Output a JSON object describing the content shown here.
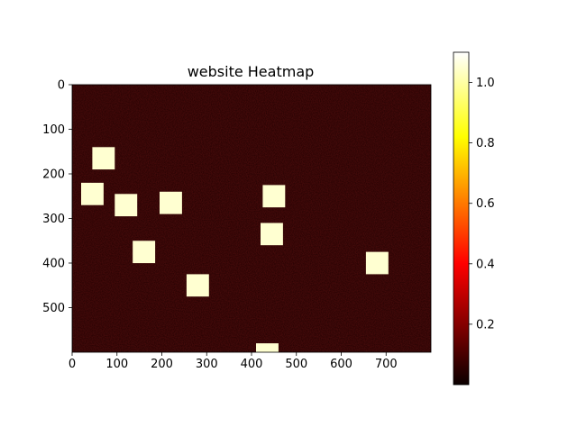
{
  "chart_data": {
    "type": "heatmap",
    "title": "website Heatmap",
    "xlabel": "",
    "ylabel": "",
    "xlim": [
      0,
      800
    ],
    "ylim": [
      600,
      0
    ],
    "x_ticks": [
      0,
      100,
      200,
      300,
      400,
      500,
      600,
      700
    ],
    "y_ticks": [
      0,
      100,
      200,
      300,
      400,
      500
    ],
    "colormap": "hot",
    "background_value": 0.05,
    "colorbar": {
      "range": [
        0,
        1.1
      ],
      "ticks": [
        "0.2",
        "0.4",
        "0.6",
        "0.8",
        "1.0"
      ],
      "tick_values": [
        0.2,
        0.4,
        0.6,
        0.8,
        1.0
      ]
    },
    "hotspots": [
      {
        "x": [
          45,
          95
        ],
        "y": [
          140,
          190
        ],
        "value": 1.05
      },
      {
        "x": [
          20,
          70
        ],
        "y": [
          220,
          270
        ],
        "value": 1.05
      },
      {
        "x": [
          95,
          145
        ],
        "y": [
          245,
          295
        ],
        "value": 1.05
      },
      {
        "x": [
          195,
          245
        ],
        "y": [
          240,
          290
        ],
        "value": 1.05
      },
      {
        "x": [
          425,
          475
        ],
        "y": [
          225,
          275
        ],
        "value": 1.05
      },
      {
        "x": [
          420,
          470
        ],
        "y": [
          310,
          360
        ],
        "value": 1.05
      },
      {
        "x": [
          135,
          185
        ],
        "y": [
          350,
          400
        ],
        "value": 1.05
      },
      {
        "x": [
          655,
          705
        ],
        "y": [
          375,
          425
        ],
        "value": 1.05
      },
      {
        "x": [
          255,
          305
        ],
        "y": [
          425,
          475
        ],
        "value": 1.05
      },
      {
        "x": [
          410,
          460
        ],
        "y": [
          580,
          600
        ],
        "value": 1.05
      }
    ]
  }
}
